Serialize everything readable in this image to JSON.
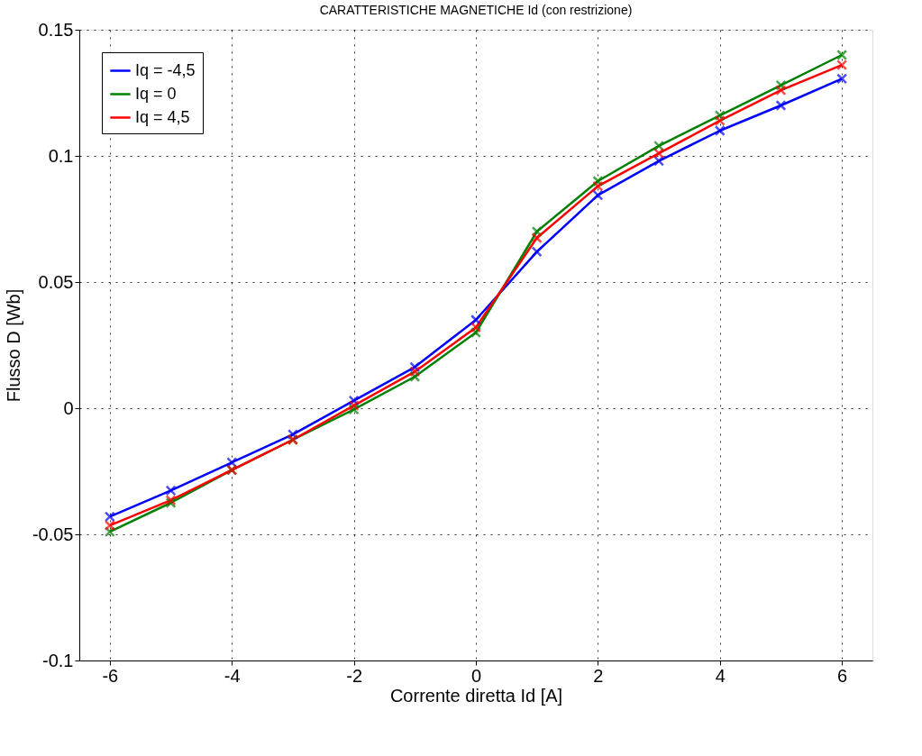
{
  "chart_data": {
    "type": "line",
    "title": "CARATTERISTICHE MAGNETICHE Id (con restrizione)",
    "xlabel": "Corrente diretta Id [A]",
    "ylabel": "Flusso D [Wb]",
    "x": [
      -6,
      -5,
      -4,
      -3,
      -2,
      -1,
      0,
      1,
      2,
      3,
      4,
      5,
      6
    ],
    "series": [
      {
        "name": "Iq = -4,5",
        "color": "#0000ff",
        "values": [
          -0.043,
          -0.0326,
          -0.0215,
          -0.0104,
          0.003,
          0.0163,
          0.035,
          0.062,
          0.0844,
          0.098,
          0.11,
          0.12,
          0.1306
        ]
      },
      {
        "name": "Iq = 0",
        "color": "#008000",
        "values": [
          -0.049,
          -0.0375,
          -0.0245,
          -0.0125,
          -0.0005,
          0.0125,
          0.03,
          0.07,
          0.09,
          0.104,
          0.116,
          0.128,
          0.14
        ]
      },
      {
        "name": "Iq = 4,5",
        "color": "#ff0000",
        "values": [
          -0.0465,
          -0.0365,
          -0.0245,
          -0.0125,
          0.001,
          0.0145,
          0.032,
          0.0675,
          0.088,
          0.101,
          0.114,
          0.126,
          0.136
        ]
      }
    ],
    "xlim": [
      -6.5,
      6.5
    ],
    "xticks": [
      -6,
      -4,
      -2,
      0,
      2,
      4,
      6
    ],
    "ylim": [
      -0.1,
      0.15
    ],
    "yticks": [
      -0.1,
      -0.05,
      0,
      0.05,
      0.1,
      0.15
    ],
    "grid": true,
    "legend": "top left",
    "marker": "cross",
    "line_style": "solid"
  }
}
